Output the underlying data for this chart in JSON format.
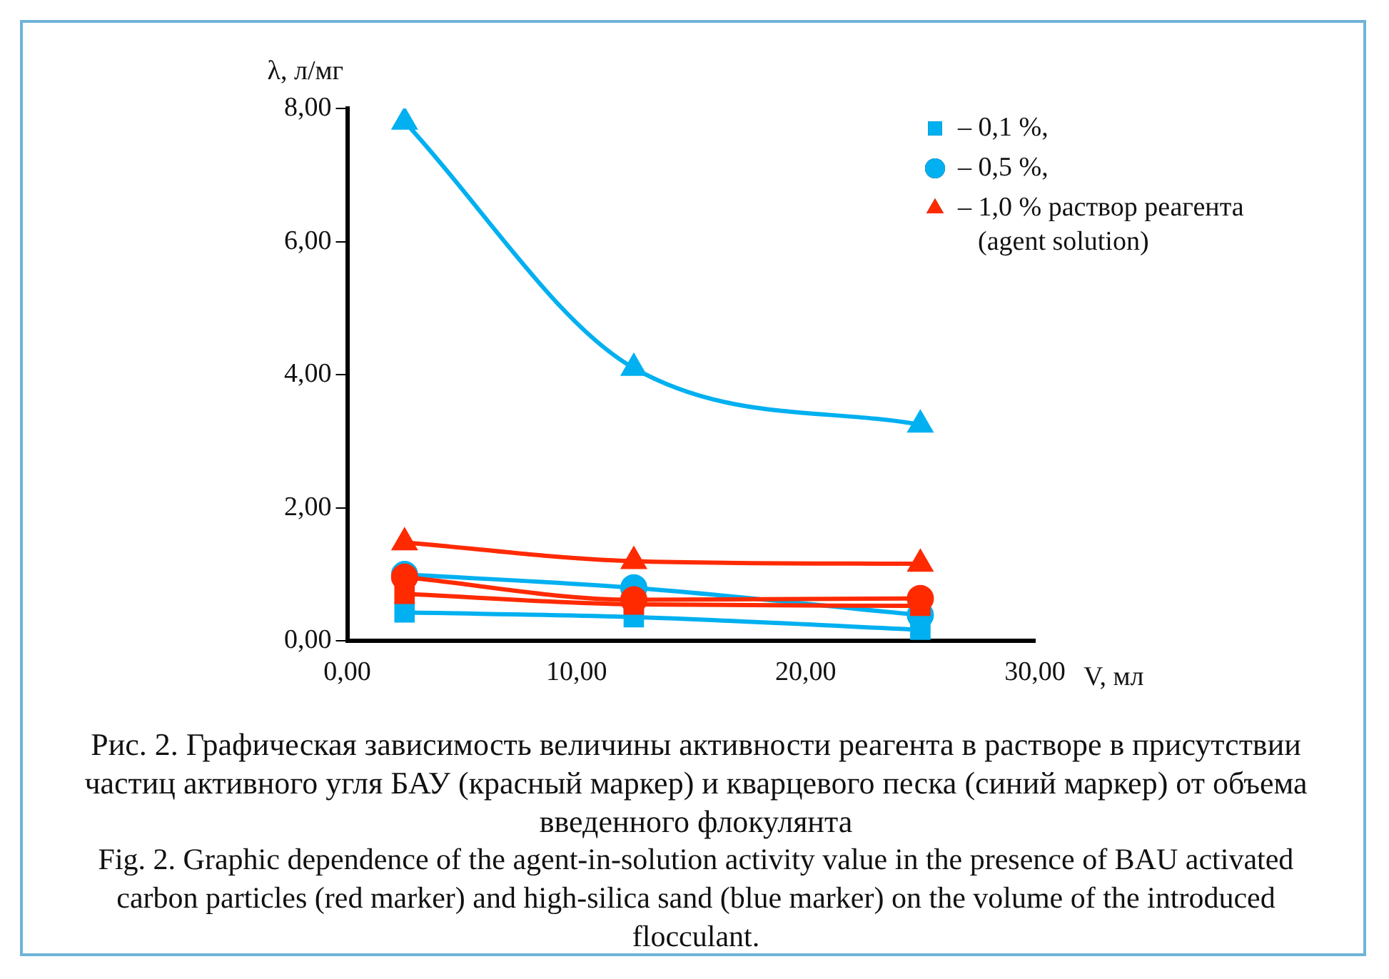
{
  "chart_data": {
    "type": "line",
    "xlabel": "V, мл",
    "ylabel": "λ, л/мг",
    "xlim": [
      0,
      30
    ],
    "xticks": [
      {
        "value": 0,
        "label": "0,00"
      },
      {
        "value": 10,
        "label": "10,00"
      },
      {
        "value": 20,
        "label": "20,00"
      },
      {
        "value": 30,
        "label": "30,00"
      }
    ],
    "ylim": [
      0,
      8
    ],
    "yticks": [
      {
        "value": 0,
        "label": "0,00"
      },
      {
        "value": 2,
        "label": "2,00"
      },
      {
        "value": 4,
        "label": "4,00"
      },
      {
        "value": 6,
        "label": "6,00"
      },
      {
        "value": 8,
        "label": "8,00"
      }
    ],
    "x": [
      2.5,
      12.5,
      25
    ],
    "grid": false,
    "legend": "top right",
    "line_style": "solid",
    "series": [
      {
        "name": "– 0,1 %,",
        "color": "#00b0f0",
        "marker": "square",
        "values": [
          0.43,
          0.36,
          0.17
        ]
      },
      {
        "name": "– 0,5 %,",
        "color": "#00b0f0",
        "marker": "circle",
        "values": [
          1.0,
          0.8,
          0.39
        ]
      },
      {
        "color": "#00b0f0",
        "marker": "triangle",
        "values": [
          7.8,
          4.1,
          3.25
        ]
      },
      {
        "color": "#ff2a00",
        "marker": "square",
        "values": [
          0.71,
          0.55,
          0.53
        ]
      },
      {
        "color": "#ff2a00",
        "marker": "circle",
        "values": [
          0.96,
          0.62,
          0.64
        ]
      },
      {
        "name": "– 1,0 % раствор реагента (agent solution)",
        "color": "#ff2a00",
        "marker": "triangle",
        "values": [
          1.48,
          1.2,
          1.16
        ]
      }
    ],
    "annotations": [
      "Рис. 2. Графическая зависимость величины активности реагента в растворе в присутствии частиц активного угля БАУ (красный маркер) и кварцевого песка (синий маркер) от объема введенного флокулянта",
      "Fig. 2. Graphic dependence of the agent-in-solution activity value in the presence of BAU activated carbon particles (red marker) and high-silica sand (blue marker) on the volume of the introduced flocculant."
    ]
  }
}
